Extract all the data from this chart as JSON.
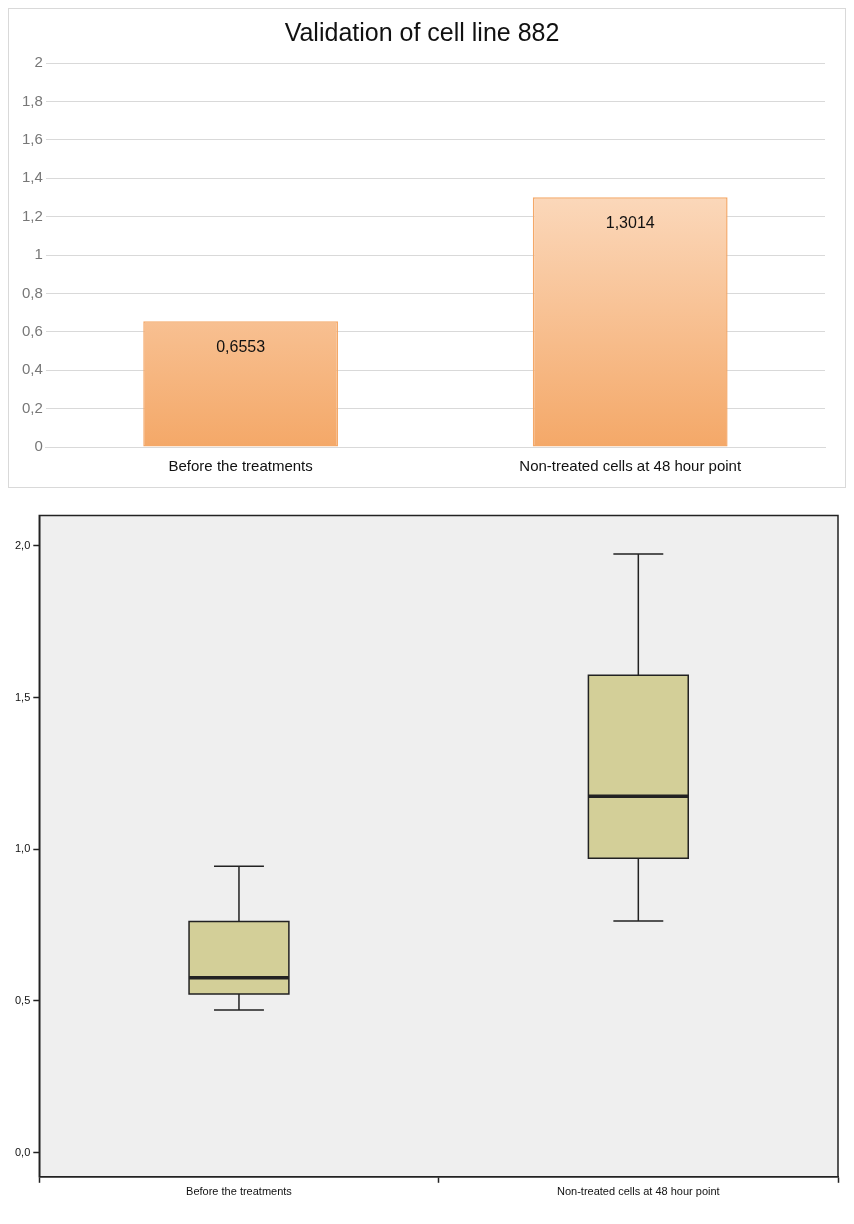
{
  "chart_data": [
    {
      "type": "bar",
      "title": "Validation of cell line 882",
      "categories": [
        "Before the treatments",
        "Non-treated cells at 48 hour point"
      ],
      "values": [
        0.6553,
        1.3014
      ],
      "value_labels": [
        "0,6553",
        "1,3014"
      ],
      "color": "#f4a868",
      "ylim": [
        0,
        2
      ],
      "yticks": [
        0,
        {
          "value": 0.2,
          "label": "0,2"
        },
        {
          "value": 0.4,
          "label": "0,4"
        },
        {
          "value": 0.6,
          "label": "0,6"
        },
        {
          "value": 0.8,
          "label": "0,8"
        },
        1,
        {
          "value": 1.2,
          "label": "1,2"
        },
        {
          "value": 1.4,
          "label": "1,4"
        },
        {
          "value": 1.6,
          "label": "1,6"
        },
        {
          "value": 1.8,
          "label": "1,8"
        },
        2
      ],
      "grid": "y"
    },
    {
      "type": "box",
      "categories": [
        "Before the treatments",
        "Non-treated cells at 48 hour point"
      ],
      "color": "#d3cf98",
      "boxes": [
        {
          "low": 0.47,
          "q1": 0.523,
          "median": 0.576,
          "q3": 0.762,
          "high": 0.944
        },
        {
          "low": 0.763,
          "q1": 0.97,
          "median": 1.175,
          "q3": 1.574,
          "high": 1.973
        }
      ],
      "ylim": [
        -0.08,
        2.1
      ],
      "yticks": [
        {
          "value": 0,
          "label": "0,0"
        },
        {
          "value": 0.5,
          "label": "0,5"
        },
        {
          "value": 1,
          "label": "1,0"
        },
        {
          "value": 1.5,
          "label": "1,5"
        },
        {
          "value": 2,
          "label": "2,0"
        }
      ],
      "grid": false
    }
  ]
}
